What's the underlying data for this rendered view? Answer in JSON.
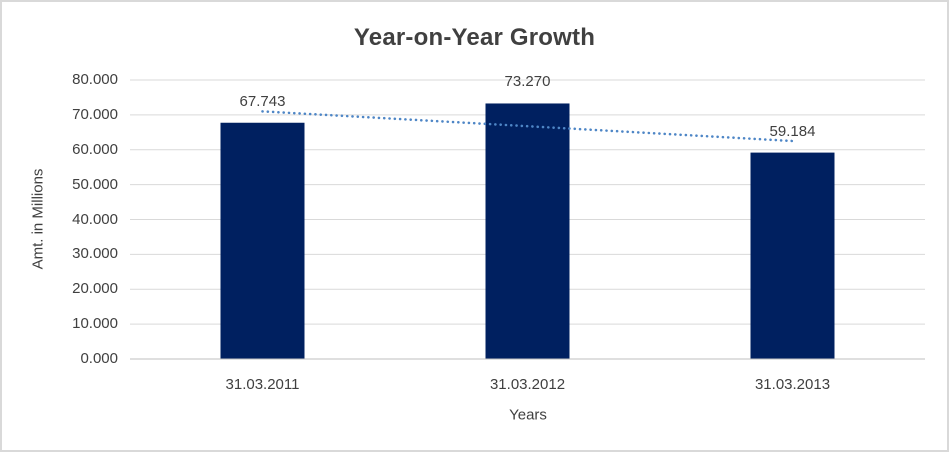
{
  "window": {
    "background": "#FFFFFF",
    "border_color": "#D9D9D9"
  },
  "chart_data": {
    "type": "bar",
    "title": "Year-on-Year Growth",
    "categories": [
      "31.03.2011",
      "31.03.2012",
      "31.03.2013"
    ],
    "values": [
      67.743,
      73.27,
      59.184
    ],
    "value_labels": [
      "67.743",
      "73.270",
      "59.184"
    ],
    "xlabel": "Years",
    "ylabel": "Amt. in Millions",
    "ylim": [
      0,
      80
    ],
    "ytick_step": 10,
    "ytick_labels": [
      "0.000",
      "10.000",
      "20.000",
      "30.000",
      "40.000",
      "50.000",
      "60.000",
      "70.000",
      "80.000"
    ],
    "grid": true,
    "legend": "none",
    "bar_color": "#002060",
    "gridline_color": "#D9D9D9",
    "axis_line_color": "#BFBFBF",
    "text_color": "#404040",
    "trendline": {
      "type": "linear",
      "style": "dotted",
      "color": "#4E86C6",
      "start_value": 71.0,
      "end_value": 62.5
    }
  }
}
